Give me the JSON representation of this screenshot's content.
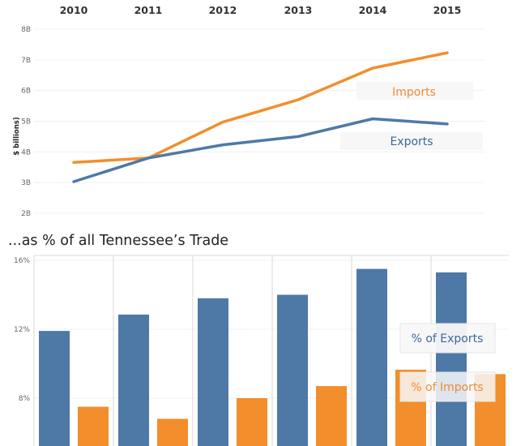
{
  "chart_data": [
    {
      "type": "line",
      "title": "",
      "ylabel": "$ billions)",
      "x": [
        "2010",
        "2011",
        "2012",
        "2013",
        "2014",
        "2015"
      ],
      "yticks": [
        "2B",
        "3B",
        "4B",
        "5B",
        "6B",
        "7B",
        "8B"
      ],
      "ylim": [
        2,
        8
      ],
      "grid": true,
      "series": [
        {
          "name": "Imports",
          "color": "#f28e2b",
          "values": [
            3.66,
            3.8,
            4.97,
            5.7,
            6.73,
            7.23
          ]
        },
        {
          "name": "Exports",
          "color": "#4e79a7",
          "values": [
            3.03,
            3.8,
            4.23,
            4.5,
            5.08,
            4.91
          ]
        }
      ]
    },
    {
      "type": "bar",
      "title": "...as % of all Tennessee’s Trade",
      "categories": [
        "2010",
        "2011",
        "2012",
        "2013",
        "2014",
        "2015"
      ],
      "yticks": [
        "8%",
        "12%",
        "16%"
      ],
      "ylim": [
        4.3,
        16
      ],
      "grid": true,
      "series": [
        {
          "name": "% of Exports",
          "color": "#4e79a7",
          "values": [
            11.9,
            12.85,
            13.8,
            14.0,
            15.5,
            15.3
          ]
        },
        {
          "name": "% of Imports",
          "color": "#f28e2b",
          "values": [
            7.5,
            6.8,
            8.0,
            8.7,
            9.65,
            9.4
          ]
        }
      ]
    }
  ]
}
